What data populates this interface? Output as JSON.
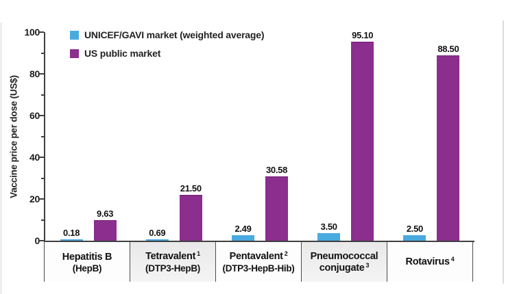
{
  "chart_data": {
    "type": "bar",
    "title": "",
    "ylabel": "Vaccine price per dose (US$)",
    "ylim": [
      0,
      100
    ],
    "y_ticks_major": [
      0,
      20,
      40,
      60,
      80,
      100
    ],
    "y_ticks_minor": [
      10,
      30,
      50,
      70,
      90
    ],
    "grid": false,
    "legend_position": "top-left",
    "categories": [
      {
        "name_lines": [
          "Hepatitis B"
        ],
        "sup": "",
        "subtitle": "(HepB)",
        "shaded": false
      },
      {
        "name_lines": [
          "Tetravalent"
        ],
        "sup": "1",
        "subtitle": "(DTP3-HepB)",
        "shaded": true
      },
      {
        "name_lines": [
          "Pentavalent"
        ],
        "sup": "2",
        "subtitle": "(DTP3-HepB-Hib)",
        "shaded": false
      },
      {
        "name_lines": [
          "Pneumococcal",
          "conjugate"
        ],
        "sup": "3",
        "subtitle": "",
        "shaded": true
      },
      {
        "name_lines": [
          "Rotavirus"
        ],
        "sup": "4",
        "subtitle": "",
        "shaded": false
      }
    ],
    "series": [
      {
        "name": "UNICEF/GAVI market (weighted average)",
        "color": "#49aadf",
        "values": [
          0.18,
          0.69,
          2.49,
          3.5,
          2.5
        ],
        "labels": [
          "0.18",
          "0.69",
          "2.49",
          "3.50",
          "2.50"
        ]
      },
      {
        "name": "US public market",
        "color": "#8b2e8e",
        "values": [
          9.63,
          21.5,
          30.58,
          95.1,
          88.5
        ],
        "labels": [
          "9.63",
          "21.50",
          "30.58",
          "95.10",
          "88.50"
        ]
      }
    ]
  },
  "colors": {
    "axis": "#3f3f3f",
    "cell_border": "#4a4a4a",
    "shaded_cell": "#ebebeb",
    "text": "#1c1c1c"
  }
}
